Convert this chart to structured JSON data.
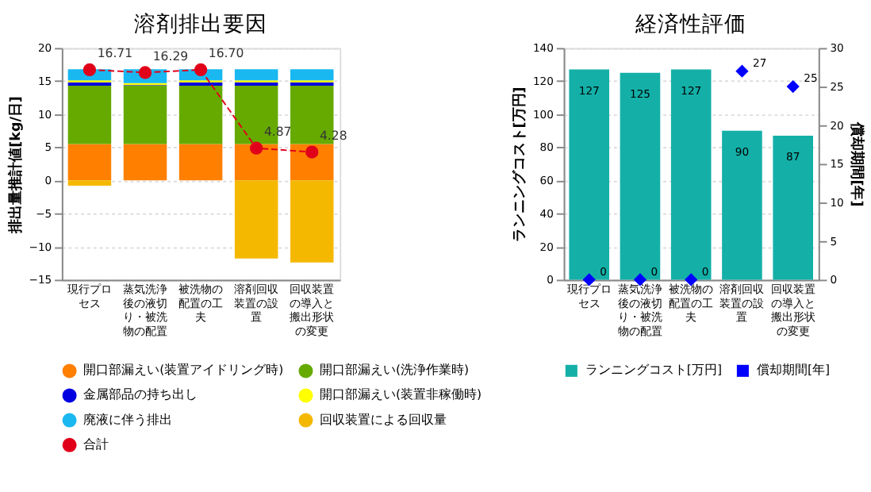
{
  "chart_data": [
    {
      "type": "bar",
      "title": "溶剤排出要因",
      "ylabel": "排出量推計値[kg/日]",
      "stacked": true,
      "categories": [
        "現行プロセス",
        "蒸気洗浄後の液切り・被洗物の配置",
        "被洗物の配置の工夫",
        "溶剤回収装置の設置",
        "回収装置の導入と搬出形状の変更"
      ],
      "ylim": [
        -15,
        20
      ],
      "yticks": [
        -15,
        -10,
        -5,
        0,
        5,
        10,
        15,
        20
      ],
      "grid": "y",
      "legend": "bottom",
      "series": [
        {
          "name": "開口部漏えい(装置アイドリング時)",
          "color": "#ff7f00",
          "values": [
            5.5,
            5.5,
            5.5,
            5.5,
            5.5
          ]
        },
        {
          "name": "開口部漏えい(洗浄作業時)",
          "color": "#66aa00",
          "values": [
            8.8,
            8.8,
            8.8,
            8.8,
            8.8
          ]
        },
        {
          "name": "金属部品の持ち出し",
          "color": "#0000e0",
          "values": [
            0.5,
            0.1,
            0.5,
            0.5,
            0.5
          ]
        },
        {
          "name": "開口部漏えい(装置非稼働時)",
          "color": "#ffff00",
          "values": [
            0.3,
            0.3,
            0.3,
            0.3,
            0.3
          ]
        },
        {
          "name": "廃液に伴う排出",
          "color": "#1ab8f0",
          "values": [
            1.7,
            2.1,
            1.7,
            1.7,
            1.7
          ]
        },
        {
          "name": "回収装置による回収量",
          "color": "#f5b800",
          "values": [
            -0.8,
            0,
            0,
            -11.8,
            -12.4
          ]
        },
        {
          "name": "合計",
          "type": "line",
          "color": "#e0001a",
          "marker": "circle",
          "line_style": "dashed",
          "values": [
            16.71,
            16.29,
            16.7,
            4.87,
            4.28
          ],
          "value_labels": [
            "16.71",
            "16.29",
            "16.70",
            "4.87",
            "4.28"
          ]
        }
      ]
    },
    {
      "type": "bar",
      "title": "経済性評価",
      "ylabel": "ランニングコスト[万円]",
      "y2label": "償却期間[年]",
      "categories": [
        "現行プロセス",
        "蒸気洗浄後の液切り・被洗物の配置",
        "被洗物の配置の工夫",
        "溶剤回収装置の設置",
        "回収装置の導入と搬出形状の変更"
      ],
      "ylim": [
        0,
        140
      ],
      "yticks": [
        0,
        20,
        40,
        60,
        80,
        100,
        120,
        140
      ],
      "y2lim": [
        0,
        30
      ],
      "y2ticks": [
        0,
        5,
        10,
        15,
        20,
        25,
        30
      ],
      "grid": "y",
      "legend": "bottom",
      "data_labels": true,
      "series": [
        {
          "name": "ランニングコスト[万円]",
          "color": "#14b0a8",
          "values": [
            127,
            125,
            127,
            90,
            87
          ]
        },
        {
          "name": "償却期間[年]",
          "type": "scatter",
          "axis": "y2",
          "marker": "diamond",
          "color": "#0000ff",
          "values": [
            0,
            0,
            0,
            27,
            25
          ]
        }
      ]
    }
  ]
}
